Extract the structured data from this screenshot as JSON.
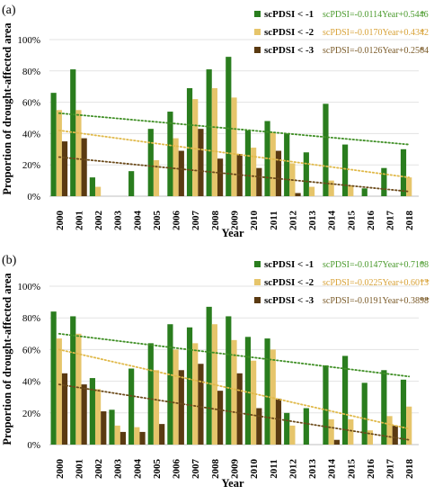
{
  "shared": {
    "ylabel": "Proportion of drought-affected area",
    "xlabel": "Year"
  },
  "colors": {
    "series": [
      "#2a7d1e",
      "#e6c56b",
      "#5a3a12"
    ],
    "equation_text": [
      "#4a9a2c",
      "#d8a238",
      "#7a5a28"
    ],
    "trend": [
      "#3f8f25",
      "#e0b94a",
      "#6b4a1a"
    ]
  },
  "chart_data": [
    {
      "type": "bar",
      "panel_label": "(a)",
      "categories": [
        "2000",
        "2001",
        "2002",
        "2003",
        "2004",
        "2005",
        "2006",
        "2007",
        "2008",
        "2009",
        "2010",
        "2011",
        "2012",
        "2013",
        "2014",
        "2015",
        "2016",
        "2017",
        "2018"
      ],
      "ylim": [
        0,
        100
      ],
      "yticks": [
        "0%",
        "20%",
        "40%",
        "60%",
        "80%",
        "100%"
      ],
      "grid": "horizontal",
      "legend_position": "top-right",
      "series": [
        {
          "name": "scPDSI < -1",
          "equation": "scPDSI=-0.0114Year+0.5446",
          "sig": "*",
          "values": [
            66,
            81,
            12,
            0,
            16,
            43,
            54,
            69,
            81,
            89,
            42,
            48,
            40,
            28,
            59,
            33,
            5,
            18,
            30
          ],
          "trend": [
            53,
            33
          ]
        },
        {
          "name": "scPDSI < -2",
          "equation": "scPDSI=-0.0170Year+0.4342",
          "sig": "*",
          "values": [
            55,
            55,
            6,
            0,
            0,
            23,
            37,
            62,
            69,
            63,
            31,
            41,
            21,
            6,
            10,
            7,
            0,
            0,
            12
          ],
          "trend": [
            42,
            12
          ]
        },
        {
          "name": "scPDSI < -3",
          "equation": "scPDSI=-0.0126Year+0.2564",
          "sig": "*",
          "values": [
            35,
            37,
            0,
            0,
            0,
            0,
            29,
            43,
            24,
            27,
            18,
            29,
            2,
            0,
            0,
            0,
            0,
            0,
            0
          ],
          "trend": [
            25,
            3
          ]
        }
      ]
    },
    {
      "type": "bar",
      "panel_label": "(b)",
      "categories": [
        "2000",
        "2001",
        "2002",
        "2003",
        "2004",
        "2005",
        "2006",
        "2007",
        "2008",
        "2009",
        "2010",
        "2011",
        "2012",
        "2013",
        "2014",
        "2015",
        "2016",
        "2017",
        "2018"
      ],
      "ylim": [
        0,
        100
      ],
      "yticks": [
        "0%",
        "20%",
        "40%",
        "60%",
        "80%",
        "100%"
      ],
      "grid": "horizontal",
      "legend_position": "top-right",
      "series": [
        {
          "name": "scPDSI < -1",
          "equation": "scPDSI=-0.0147Year+0.7108",
          "sig": "*",
          "values": [
            84,
            81,
            42,
            22,
            48,
            64,
            76,
            74,
            87,
            81,
            68,
            67,
            20,
            23,
            50,
            56,
            39,
            47,
            41
          ],
          "trend": [
            70,
            43
          ]
        },
        {
          "name": "scPDSI < -2",
          "equation": "scPDSI=-0.0225Year+0.6013",
          "sig": "**",
          "values": [
            67,
            70,
            35,
            12,
            11,
            47,
            60,
            64,
            76,
            66,
            53,
            60,
            12,
            0,
            16,
            16,
            9,
            18,
            24
          ],
          "trend": [
            60,
            10
          ]
        },
        {
          "name": "scPDSI < -3",
          "equation": "scPDSI=-0.0191Year+0.3898",
          "sig": "**",
          "values": [
            45,
            38,
            21,
            8,
            8,
            13,
            47,
            51,
            34,
            45,
            23,
            29,
            0,
            0,
            3,
            0,
            0,
            12,
            0
          ],
          "trend": [
            38,
            3
          ]
        }
      ]
    }
  ]
}
